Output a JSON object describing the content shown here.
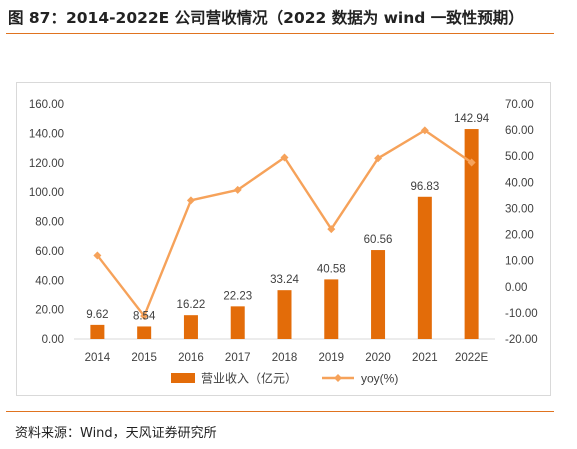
{
  "title": "图 87：2014-2022E 公司营收情况（2022 数据为 wind 一致性预期）",
  "source": "资料来源：Wind，天风证券研究所",
  "colors": {
    "bar": "#e36c09",
    "line": "#f6a25a",
    "rule": "#e0731f",
    "axis": "#d9d9d9"
  },
  "chart_data": {
    "type": "bar",
    "categories": [
      "2014",
      "2015",
      "2016",
      "2017",
      "2018",
      "2019",
      "2020",
      "2021",
      "2022E"
    ],
    "series": [
      {
        "name": "营业收入（亿元）",
        "type": "bar",
        "axis": "left",
        "values": [
          9.62,
          8.54,
          16.22,
          22.23,
          33.24,
          40.58,
          60.56,
          96.83,
          142.94
        ],
        "labels": [
          "9.62",
          "8.54",
          "16.22",
          "22.23",
          "33.24",
          "40.58",
          "60.56",
          "96.83",
          "142.94"
        ]
      },
      {
        "name": "yoy(%)",
        "type": "line",
        "axis": "right",
        "values": [
          12.0,
          -11.2,
          33.1,
          37.1,
          49.5,
          22.1,
          49.2,
          59.9,
          47.6
        ]
      }
    ],
    "ylim_left": [
      0,
      160
    ],
    "yticks_left": [
      "0.00",
      "20.00",
      "40.00",
      "60.00",
      "80.00",
      "100.00",
      "120.00",
      "140.00",
      "160.00"
    ],
    "ylim_right": [
      -20,
      70
    ],
    "yticks_right": [
      "-20.00",
      "-10.00",
      "0.00",
      "10.00",
      "20.00",
      "30.00",
      "40.00",
      "50.00",
      "60.00",
      "70.00"
    ],
    "legend_position": "bottom",
    "grid": false
  }
}
